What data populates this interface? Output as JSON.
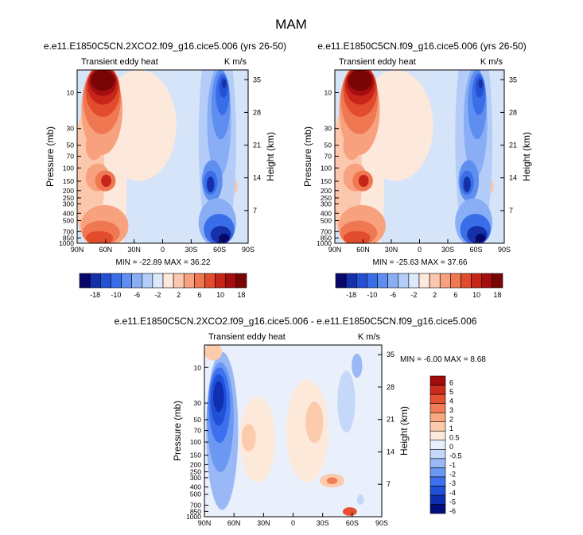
{
  "figure": {
    "title": "MAM"
  },
  "chart_data": [
    {
      "type": "heatmap",
      "id": "left",
      "title": "e.e11.E1850C5CN.2XCO2.f09_g16.cice5.006 (yrs 26-50)",
      "left_label": "Transient eddy heat",
      "right_label": "K m/s",
      "xlabel": "",
      "ylabel": "Pressure (mb)",
      "ylabel_right": "Height (km)",
      "x_ticks": [
        "90N",
        "60N",
        "30N",
        "0",
        "30S",
        "60S",
        "90S"
      ],
      "y_ticks": [
        "10",
        "30",
        "50",
        "70",
        "100",
        "150",
        "200",
        "250",
        "300",
        "400",
        "500",
        "700",
        "850",
        "1000"
      ],
      "y_ticks_right": [
        "35",
        "28",
        "21",
        "14",
        "7"
      ],
      "stats": "MIN = -22.89   MAX = 36.22",
      "min": -22.89,
      "max": 36.22
    },
    {
      "type": "heatmap",
      "id": "right",
      "title": "e.e11.E1850C5CN.f09_g16.cice5.006 (yrs 26-50)",
      "left_label": "Transient eddy heat",
      "right_label": "K m/s",
      "xlabel": "",
      "ylabel": "Pressure (mb)",
      "ylabel_right": "Height (km)",
      "x_ticks": [
        "90N",
        "60N",
        "30N",
        "0",
        "30S",
        "60S",
        "90S"
      ],
      "y_ticks": [
        "10",
        "30",
        "50",
        "70",
        "100",
        "150",
        "200",
        "250",
        "300",
        "400",
        "500",
        "700",
        "850",
        "1000"
      ],
      "y_ticks_right": [
        "35",
        "28",
        "21",
        "14",
        "7"
      ],
      "stats": "MIN = -25.63   MAX = 37.66",
      "min": -25.63,
      "max": 37.66
    },
    {
      "type": "heatmap",
      "id": "diff",
      "title": "e.e11.E1850C5CN.2XCO2.f09_g16.cice5.006 - e.e11.E1850C5CN.f09_g16.cice5.006",
      "left_label": "Transient eddy heat",
      "right_label": "K m/s",
      "xlabel": "",
      "ylabel": "Pressure (mb)",
      "ylabel_right": "Height (km)",
      "x_ticks": [
        "90N",
        "60N",
        "30N",
        "0",
        "30S",
        "60S",
        "90S"
      ],
      "y_ticks": [
        "10",
        "30",
        "50",
        "70",
        "100",
        "150",
        "200",
        "250",
        "300",
        "400",
        "500",
        "700",
        "850",
        "1000"
      ],
      "y_ticks_right": [
        "35",
        "28",
        "21",
        "14",
        "7"
      ],
      "stats": "MIN = -6.00   MAX =  8.68",
      "min": -6.0,
      "max": 8.68
    }
  ],
  "colorbar_main": {
    "colors": [
      "#08086b",
      "#1530a8",
      "#2450d4",
      "#3a6ee8",
      "#5e8ef0",
      "#8aaef5",
      "#b4cdf8",
      "#dde9fb",
      "#fde8dc",
      "#fbc7ad",
      "#f7a17e",
      "#ef7752",
      "#e04c2c",
      "#c8251a",
      "#a50e10",
      "#7a0505"
    ],
    "labels": [
      "-18",
      "-10",
      "-6",
      "-2",
      "2",
      "6",
      "10",
      "18"
    ]
  },
  "colorbar_diff": {
    "colors": [
      "#000f80",
      "#0f2fb0",
      "#2050d8",
      "#3c70ee",
      "#6a98f2",
      "#9ab8f6",
      "#c6d8fa",
      "#e9f0fc",
      "#fde9da",
      "#fbcbac",
      "#f8a882",
      "#f27c56",
      "#e64f30",
      "#cc2a1c",
      "#a30a0a"
    ],
    "labels": [
      "6",
      "5",
      "4",
      "3",
      "2",
      "1",
      "0.5",
      "0",
      "-0.5",
      "-1",
      "-2",
      "-3",
      "-4",
      "-5",
      "-6"
    ]
  }
}
